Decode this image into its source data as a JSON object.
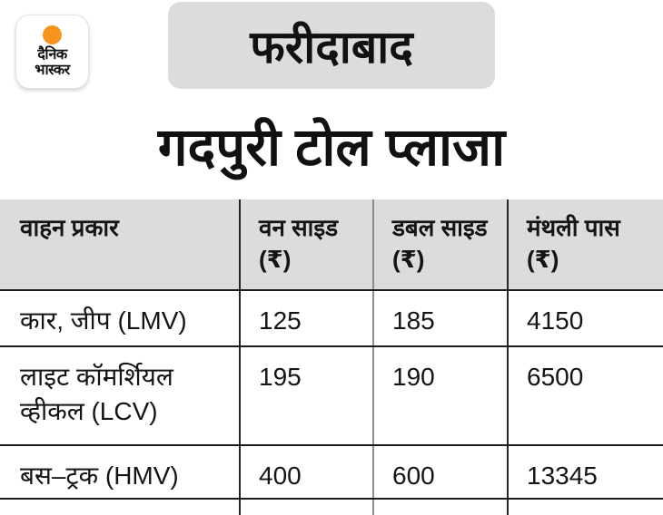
{
  "colors": {
    "panel_gray": "#DCDCDC",
    "brand_orange": "#F7941D",
    "grid_dark": "#262626",
    "grid_gray": "#8C8C8C",
    "text": "#141414"
  },
  "logo": {
    "line1": "दैनिक",
    "line2": "भास्कर"
  },
  "location_badge": "फरीदाबाद",
  "title": "गदपुरी टोल प्लाजा",
  "chart_data": {
    "type": "table",
    "title": "गदपुरी टोल प्लाजा",
    "region_label": "फरीदाबाद",
    "columns": [
      "वाहन प्रकार",
      "वन साइड (₹)",
      "डबल साइड (₹)",
      "मंथली पास (₹)"
    ],
    "rows": [
      [
        "कार, जीप (LMV)",
        "125",
        "185",
        "4150"
      ],
      [
        "लाइट कॉमर्शियल व्हीकल (LCV)",
        "195",
        "190",
        "6500"
      ],
      [
        "बस–ट्रक (HMV)",
        "400",
        "600",
        "13345"
      ]
    ],
    "notes": "fourth row cut off at bottom edge of image; currency in rupees"
  }
}
